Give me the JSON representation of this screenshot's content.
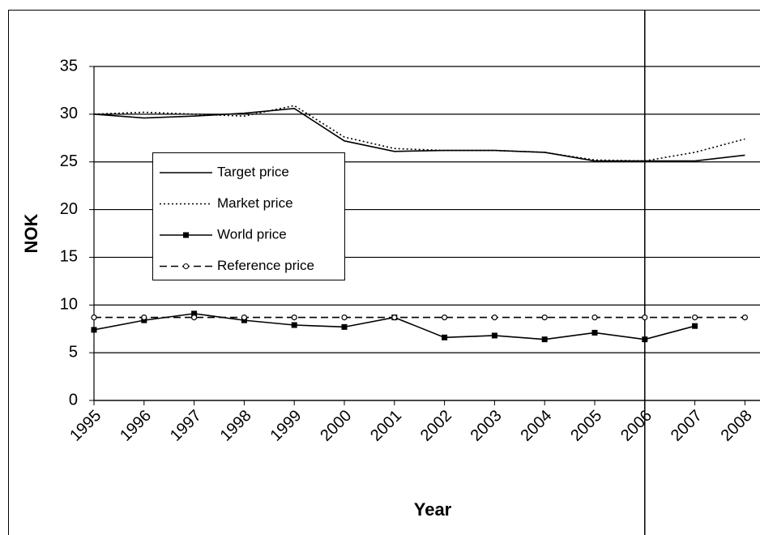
{
  "chart_data": {
    "type": "line",
    "x_label": "Year",
    "y_label": "NOK",
    "categories": [
      "1995",
      "1996",
      "1997",
      "1998",
      "1999",
      "2000",
      "2001",
      "2002",
      "2003",
      "2004",
      "2005",
      "2006",
      "2007",
      "2008"
    ],
    "series": [
      {
        "name": "Target price",
        "color": "#000000",
        "dash": "solid",
        "marker": "none",
        "values": [
          30,
          29.6,
          29.8,
          30.1,
          30.6,
          27.2,
          26.1,
          26.2,
          26.2,
          26,
          25.1,
          25.1,
          25.1,
          25.7
        ]
      },
      {
        "name": "Market price",
        "color": "#000000",
        "dash": "dot",
        "marker": "none",
        "values": [
          30,
          30.2,
          30,
          29.8,
          30.9,
          27.6,
          26.4,
          26.2,
          26.2,
          26,
          25.2,
          25.1,
          26,
          27.4
        ]
      },
      {
        "name": "World price",
        "color": "#000000",
        "dash": "solid",
        "marker": "square",
        "values": [
          7.4,
          8.4,
          9.1,
          8.4,
          7.9,
          7.7,
          8.7,
          6.6,
          6.8,
          6.4,
          7.1,
          6.4,
          7.8,
          null
        ]
      },
      {
        "name": "Reference price",
        "color": "#000000",
        "dash": "dash",
        "marker": "circle",
        "values": [
          8.7,
          8.7,
          8.7,
          8.7,
          8.7,
          8.7,
          8.7,
          8.7,
          8.7,
          8.7,
          8.7,
          8.7,
          8.7,
          8.7
        ]
      }
    ],
    "ylim": [
      0,
      35
    ],
    "yticks": [
      0,
      5,
      10,
      15,
      20,
      25,
      30,
      35
    ],
    "grid": true,
    "vline": "2006"
  }
}
